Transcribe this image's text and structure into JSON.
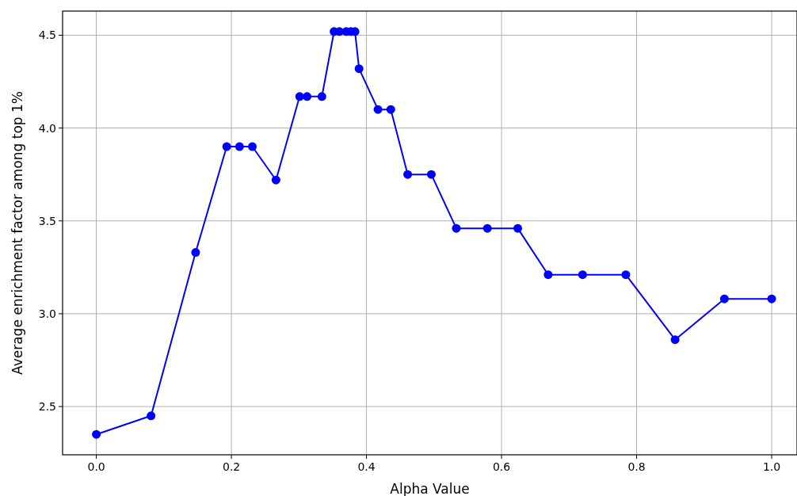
{
  "chart_data": {
    "type": "line",
    "xlabel": "Alpha Value",
    "ylabel": "Average enrichment factor among top 1%",
    "x": [
      0,
      0.081,
      0.147,
      0.193,
      0.212,
      0.231,
      0.266,
      0.301,
      0.312,
      0.334,
      0.352,
      0.36,
      0.37,
      0.377,
      0.383,
      0.389,
      0.417,
      0.436,
      0.461,
      0.496,
      0.533,
      0.579,
      0.624,
      0.669,
      0.72,
      0.784,
      0.857,
      0.93,
      1.0
    ],
    "series": [
      {
        "color": "#0000ff",
        "values": [
          2.35,
          2.45,
          3.33,
          3.9,
          3.9,
          3.9,
          3.72,
          4.17,
          4.17,
          4.17,
          4.52,
          4.52,
          4.52,
          4.52,
          4.52,
          4.32,
          4.1,
          4.1,
          3.75,
          3.75,
          3.46,
          3.46,
          3.46,
          3.21,
          3.21,
          3.21,
          2.86,
          3.08,
          3.08
        ]
      }
    ],
    "xlim": [
      -0.05,
      1.0375
    ],
    "ylim": [
      2.24,
      4.63
    ],
    "xticks": [
      {
        "value": 0,
        "label": "0.0"
      },
      {
        "value": 0.2,
        "label": "0.2"
      },
      {
        "value": 0.4,
        "label": "0.4"
      },
      {
        "value": 0.6,
        "label": "0.6"
      },
      {
        "value": 0.8,
        "label": "0.8"
      },
      {
        "value": 1,
        "label": "1.0"
      }
    ],
    "yticks": [
      {
        "value": 2.5,
        "label": "2.5"
      },
      {
        "value": 3,
        "label": "3.0"
      },
      {
        "value": 3.5,
        "label": "3.5"
      },
      {
        "value": 4,
        "label": "4.0"
      },
      {
        "value": 4.5,
        "label": "4.5"
      }
    ],
    "grid": true,
    "marker": "circle",
    "line_style": "solid"
  }
}
